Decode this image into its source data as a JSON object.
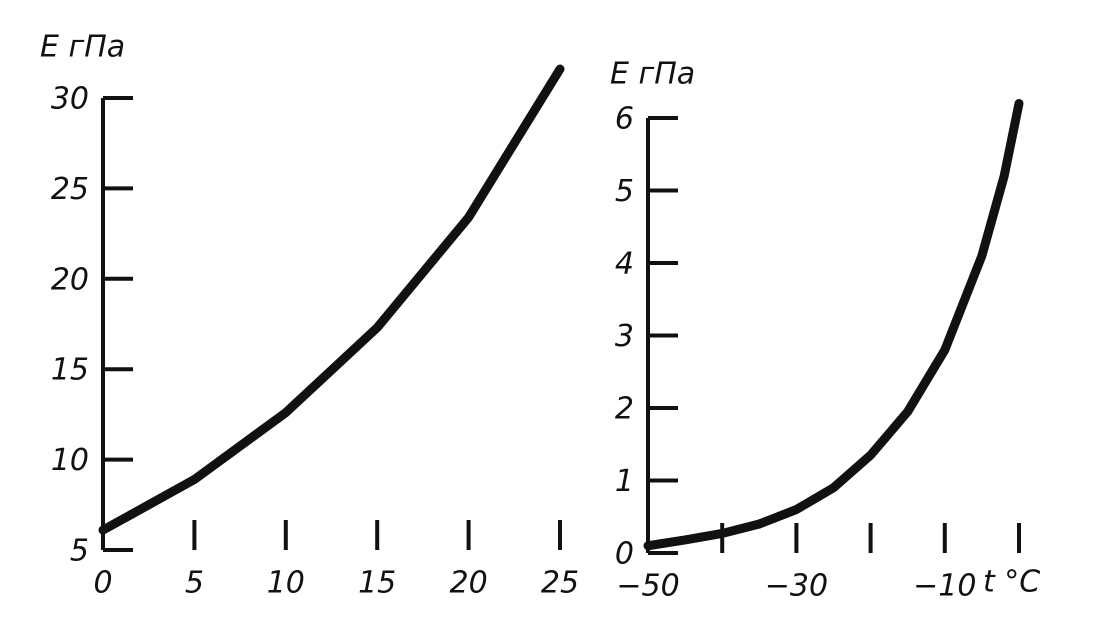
{
  "chart_data": [
    {
      "type": "line",
      "ylabel": "E гПа",
      "x": [
        0,
        5,
        10,
        15,
        20,
        25
      ],
      "values": [
        6.1,
        8.9,
        12.6,
        17.3,
        23.4,
        31.6
      ],
      "color": "#111111",
      "xlim": [
        0,
        25
      ],
      "ylim": [
        5,
        30
      ],
      "xticks": [
        0,
        5,
        10,
        15,
        20,
        25
      ],
      "yticks": [
        5,
        10,
        15,
        20,
        25,
        30
      ]
    },
    {
      "type": "line",
      "ylabel": "E гПа",
      "xlabel": "t °C",
      "x": [
        -50,
        -45,
        -40,
        -35,
        -30,
        -25,
        -20,
        -15,
        -10,
        -5,
        -2,
        0
      ],
      "values": [
        0.1,
        0.18,
        0.27,
        0.4,
        0.6,
        0.9,
        1.35,
        1.95,
        2.8,
        4.1,
        5.2,
        6.2
      ],
      "color": "#111111",
      "xlim": [
        -50,
        0
      ],
      "ylim": [
        0,
        6
      ],
      "xticks": [
        {
          "value": -50,
          "label": "−50"
        },
        {
          "value": -40,
          "label": null
        },
        {
          "value": -30,
          "label": "−30"
        },
        {
          "value": -20,
          "label": null
        },
        {
          "value": -10,
          "label": "−10"
        },
        {
          "value": 0,
          "label": null
        }
      ],
      "yticks": [
        0,
        1,
        2,
        3,
        4,
        5,
        6
      ]
    }
  ]
}
